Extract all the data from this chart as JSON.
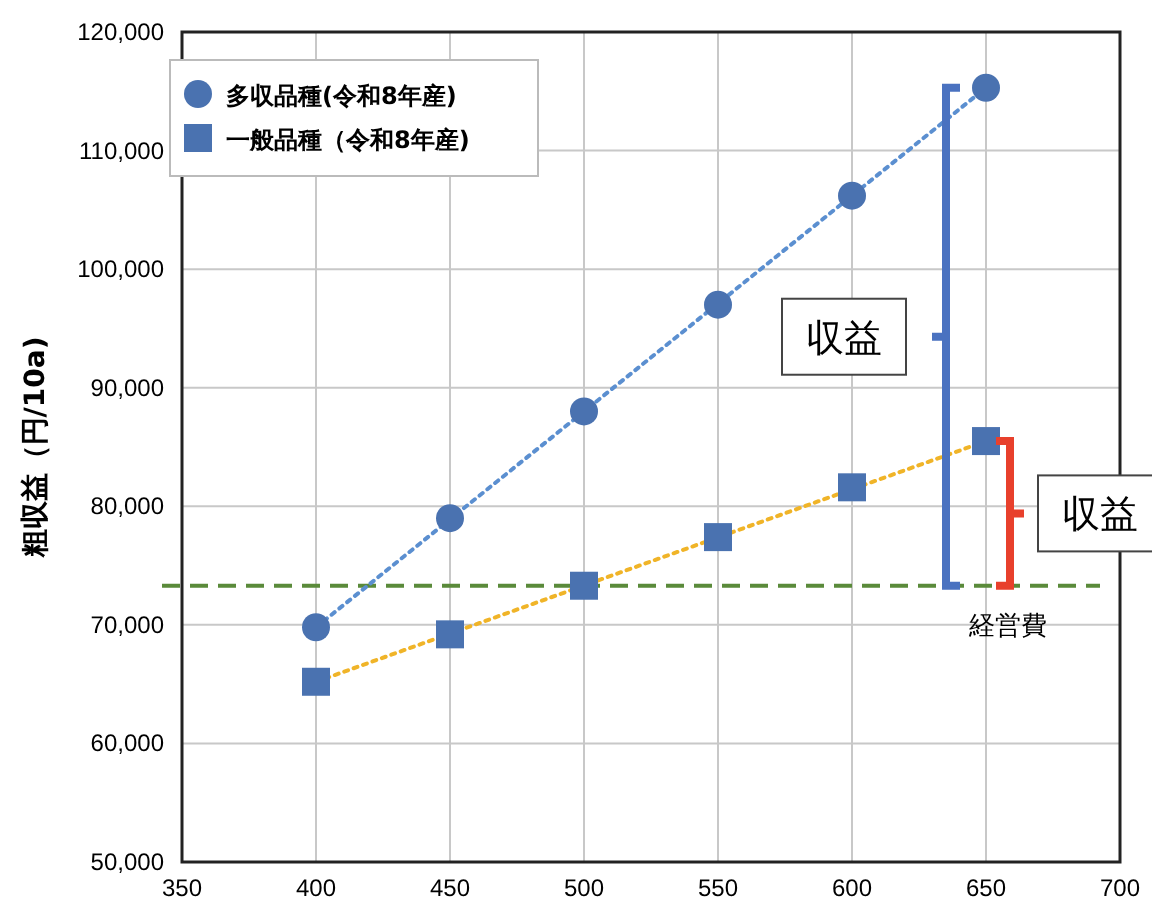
{
  "chart_data": {
    "type": "scatter",
    "ylabel": "粗収益（円/10a)",
    "xlim": [
      350,
      700
    ],
    "xticks": [
      350,
      400,
      450,
      500,
      550,
      600,
      650,
      700
    ],
    "ylim": [
      50000,
      120000
    ],
    "yticks": [
      {
        "value": 50000,
        "label": "50,000"
      },
      {
        "value": 60000,
        "label": "60,000"
      },
      {
        "value": 70000,
        "label": "70,000"
      },
      {
        "value": 80000,
        "label": "80,000"
      },
      {
        "value": 90000,
        "label": "90,000"
      },
      {
        "value": 100000,
        "label": "100,000"
      },
      {
        "value": 110000,
        "label": "110,000"
      },
      {
        "value": 120000,
        "label": "120,000"
      }
    ],
    "grid": true,
    "legend": "top left",
    "series": [
      {
        "type": "line",
        "color": "#5b8fd0",
        "line_style": "dotted",
        "marker": "none",
        "x": [
          400,
          650
        ],
        "values": [
          69800,
          115300
        ]
      },
      {
        "type": "line",
        "color": "#f0b428",
        "line_style": "dotted",
        "marker": "none",
        "x": [
          400,
          650
        ],
        "values": [
          65200,
          85500
        ]
      },
      {
        "name": "多収品種(令和8年産)",
        "color": "#4a72b0",
        "marker": "circle",
        "x": [
          400,
          450,
          500,
          550,
          600,
          650
        ],
        "values": [
          69800,
          79000,
          88000,
          97000,
          106200,
          115300
        ]
      },
      {
        "name": "一般品種（令和8年産)",
        "color": "#4a72b0",
        "marker": "square",
        "x": [
          400,
          450,
          500,
          550,
          600,
          650
        ],
        "values": [
          65200,
          69200,
          73300,
          77400,
          81600,
          85500
        ]
      }
    ],
    "ref_lines": [
      {
        "axis": "y",
        "value": 73300,
        "label": "経営費",
        "color": "#5a8a3a",
        "line_style": "dashed"
      }
    ],
    "annotations": [
      "収益",
      "収益"
    ]
  }
}
